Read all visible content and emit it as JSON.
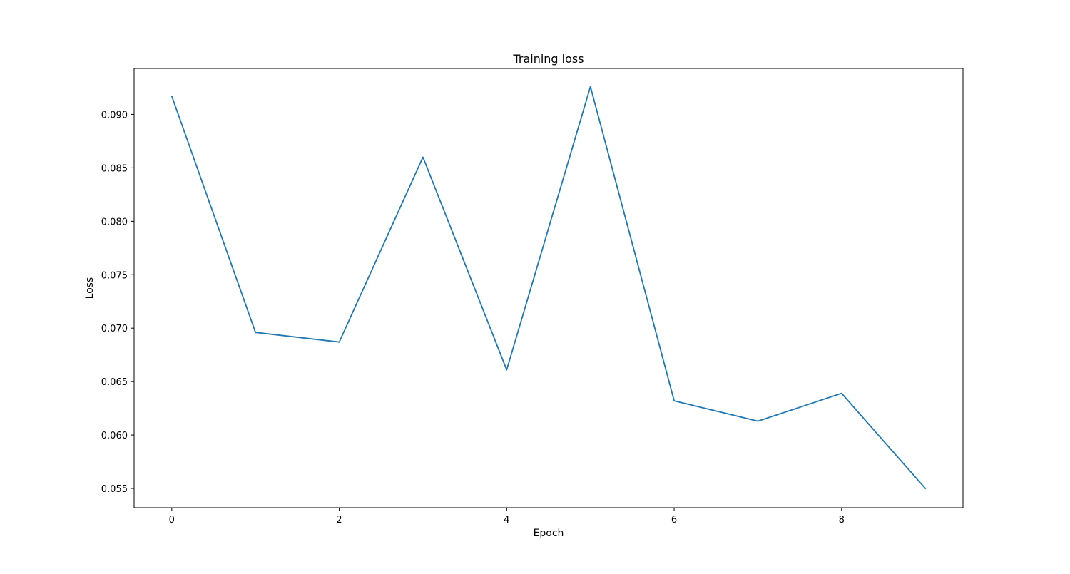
{
  "chart_data": {
    "type": "line",
    "title": "Training loss",
    "xlabel": "Epoch",
    "ylabel": "Loss",
    "xlim": [
      -0.45,
      9.45
    ],
    "ylim": [
      0.0532,
      0.0943
    ],
    "xticks": [
      0,
      2,
      4,
      6,
      8
    ],
    "xtick_labels": [
      "0",
      "2",
      "4",
      "6",
      "8"
    ],
    "yticks": [
      0.055,
      0.06,
      0.065,
      0.07,
      0.075,
      0.08,
      0.085,
      0.09
    ],
    "ytick_labels": [
      "0.055",
      "0.060",
      "0.065",
      "0.070",
      "0.075",
      "0.080",
      "0.085",
      "0.090"
    ],
    "grid": false,
    "series": [
      {
        "name": "Training loss",
        "color": "#1f77b4",
        "x": [
          0,
          1,
          2,
          3,
          4,
          5,
          6,
          7,
          8,
          9
        ],
        "values": [
          0.0917,
          0.0696,
          0.0687,
          0.086,
          0.0661,
          0.0926,
          0.0632,
          0.0613,
          0.0639,
          0.055
        ]
      }
    ]
  }
}
